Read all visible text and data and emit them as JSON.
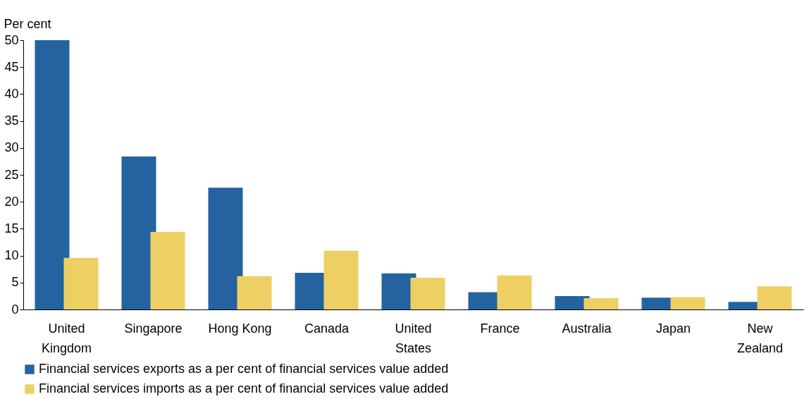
{
  "chart_data": {
    "type": "bar",
    "ylabel": "Per cent",
    "categories": [
      "United\nKingdom",
      "Singapore",
      "Hong Kong",
      "Canada",
      "United\nStates",
      "France",
      "Australia",
      "Japan",
      "New\nZealand"
    ],
    "series": [
      {
        "name": "Financial services exports as a per cent of financial services value added",
        "color": "#2563a0",
        "values": [
          50,
          28.4,
          22.6,
          6.8,
          6.7,
          3.2,
          2.5,
          2.2,
          1.4
        ]
      },
      {
        "name": "Financial services imports as a per cent of financial services value added",
        "color": "#eecf64",
        "values": [
          9.6,
          14.4,
          6.2,
          10.9,
          5.9,
          6.3,
          2.1,
          2.3,
          4.3
        ]
      }
    ],
    "ylim": [
      0,
      50
    ],
    "yticks": [
      0,
      5,
      10,
      15,
      20,
      25,
      30,
      35,
      40,
      45,
      50
    ],
    "grid": false,
    "legend": "bottom"
  }
}
